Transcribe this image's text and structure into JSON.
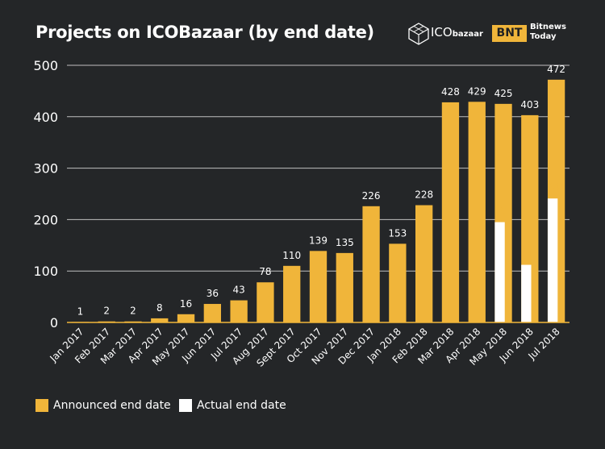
{
  "header": {
    "title": "Projects on ICOBazaar (by end date)",
    "brand_primary": "ICO",
    "brand_secondary": "bazaar",
    "partner_logo": "BNT",
    "partner_line1": "Bitnews",
    "partner_line2": "Today"
  },
  "colors": {
    "background": "#242628",
    "announced": "#f0b53a",
    "actual": "#ffffff",
    "grid": "#bfbfbf"
  },
  "chart_data": {
    "type": "bar",
    "title": "Projects on ICOBazaar (by end date)",
    "xlabel": "",
    "ylabel": "",
    "ylim": [
      0,
      500
    ],
    "yticks": [
      0,
      100,
      200,
      300,
      400,
      500
    ],
    "categories": [
      "Jan 2017",
      "Feb 2017",
      "Mar 2017",
      "Apr 2017",
      "May 2017",
      "Jun 2017",
      "Jul 2017",
      "Aug 2017",
      "Sept 2017",
      "Oct 2017",
      "Nov 2017",
      "Dec 2017",
      "Jan 2018",
      "Feb 2018",
      "Mar 2018",
      "Apr 2018",
      "May 2018",
      "Jun 2018",
      "Jul 2018"
    ],
    "series": [
      {
        "name": "Announced end date",
        "values": [
          1,
          2,
          2,
          8,
          16,
          36,
          43,
          78,
          110,
          139,
          135,
          226,
          153,
          228,
          428,
          429,
          425,
          403,
          472
        ]
      },
      {
        "name": "Actual end date",
        "values": [
          null,
          null,
          null,
          null,
          null,
          null,
          null,
          null,
          null,
          null,
          null,
          null,
          null,
          null,
          null,
          null,
          195,
          112,
          241
        ]
      }
    ],
    "legend": [
      "Announced end date",
      "Actual end date"
    ],
    "grid": true
  }
}
